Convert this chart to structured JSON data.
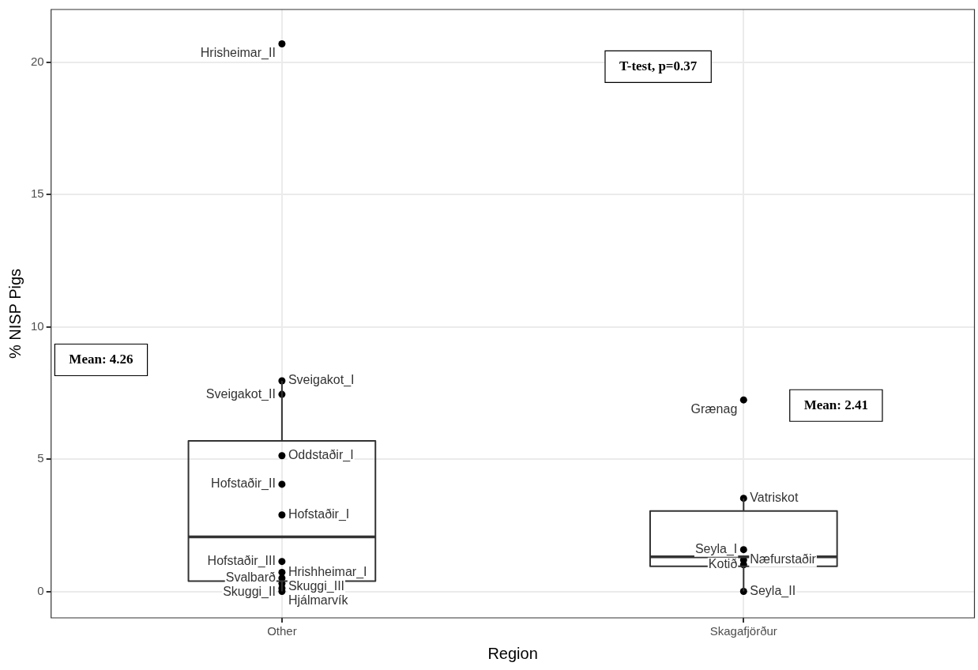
{
  "chart_data": {
    "type": "box",
    "xlabel": "Region",
    "ylabel": "% NISP Pigs",
    "categories": [
      "Other",
      "Skagafjörður"
    ],
    "color": "#333333",
    "boxes": [
      {
        "low": 0,
        "q1": 0.39,
        "median": 2.06,
        "q3": 5.69,
        "high": 7.96
      },
      {
        "low": 0,
        "q1": 0.95,
        "median": 1.31,
        "q3": 3.04,
        "high": 3.52
      }
    ],
    "series": [
      {
        "type": "scatter",
        "color": "#000000",
        "x": [
          "Other",
          "Other",
          "Other",
          "Other",
          "Other",
          "Other",
          "Other",
          "Other",
          "Other",
          "Other",
          "Other",
          "Other",
          "Skagafjörður",
          "Skagafjörður",
          "Skagafjörður",
          "Skagafjörður",
          "Skagafjörður",
          "Skagafjörður"
        ],
        "values": [
          20.7,
          7.96,
          7.45,
          5.13,
          4.05,
          2.89,
          1.13,
          0.72,
          0.5,
          0.3,
          0.12,
          0,
          7.24,
          3.52,
          1.58,
          1.19,
          1.01,
          0
        ]
      }
    ],
    "ylim": [
      -1,
      22
    ],
    "yticks": [
      0,
      5,
      10,
      15,
      20
    ],
    "grid": true,
    "legend": false,
    "marker": "circle",
    "annotations": [
      {
        "text": "Hrisheimar_II",
        "x": "Other",
        "y": 20.7
      },
      {
        "text": "Sveigakot_I",
        "x": "Other",
        "y": 7.96
      },
      {
        "text": "Sveigakot_II",
        "x": "Other",
        "y": 7.45
      },
      {
        "text": "Oddstaðir_I",
        "x": "Other",
        "y": 5.13
      },
      {
        "text": "Hofstaðir_II",
        "x": "Other",
        "y": 4.05
      },
      {
        "text": "Hofstaðir_I",
        "x": "Other",
        "y": 2.89
      },
      {
        "text": "Hofstaðir_III",
        "x": "Other",
        "y": 1.13
      },
      {
        "text": "Hrishheimar_I",
        "x": "Other",
        "y": 0.72
      },
      {
        "text": "Svalbarð",
        "x": "Other",
        "y": 0.5
      },
      {
        "text": "Skuggi_III",
        "x": "Other",
        "y": 0.3
      },
      {
        "text": "Skuggi_II",
        "x": "Other",
        "y": 0.12
      },
      {
        "text": "Hjálmarvík",
        "x": "Other",
        "y": 0
      },
      {
        "text": "Grænag",
        "x": "Skagafjörður",
        "y": 7.24
      },
      {
        "text": "Vatriskot",
        "x": "Skagafjörður",
        "y": 3.52
      },
      {
        "text": "Seyla_I",
        "x": "Skagafjörður",
        "y": 1.58
      },
      {
        "text": "Næfurstaðir",
        "x": "Skagafjörður",
        "y": 1.19
      },
      {
        "text": "Kotið",
        "x": "Skagafjörður",
        "y": 1.01
      },
      {
        "text": "Seyla_II",
        "x": "Skagafjörður",
        "y": 0
      },
      "T-test, p=0.37",
      "Mean: 4.26",
      "Mean: 2.41"
    ]
  }
}
